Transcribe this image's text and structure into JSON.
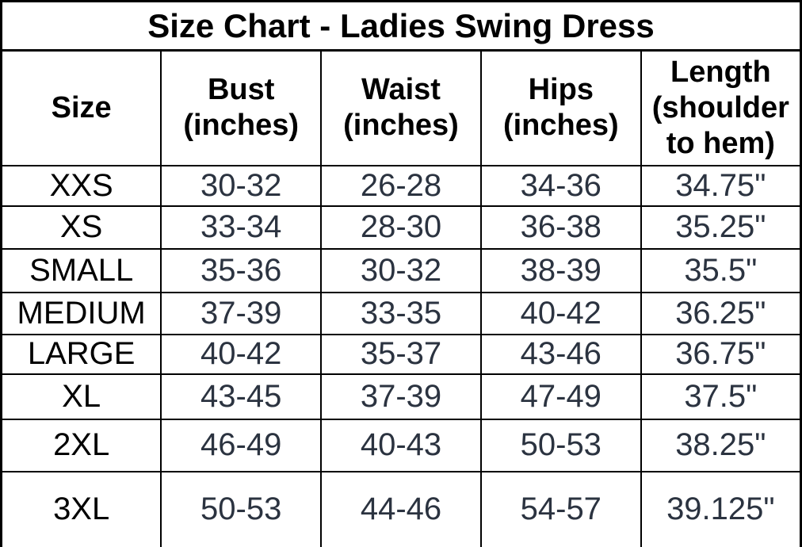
{
  "title": "Size Chart - Ladies Swing Dress",
  "header_display": {
    "size": "Size",
    "bust": "Bust\n(inches)",
    "waist": "Waist\n(inches)",
    "hips": "Hips\n(inches)",
    "length": "Length\n(shoulder\nto hem)"
  },
  "colors": {
    "background": "#ffffff",
    "border": "#000000",
    "title_text": "#000000",
    "header_text": "#000000",
    "size_label_text": "#000000",
    "value_text": "#2b3340"
  },
  "chart_data": {
    "type": "table",
    "title": "Size Chart - Ladies Swing Dress",
    "columns": [
      "Size",
      "Bust (inches)",
      "Waist (inches)",
      "Hips (inches)",
      "Length (shoulder to hem)"
    ],
    "rows": [
      [
        "XXS",
        "30-32",
        "26-28",
        "34-36",
        "34.75\""
      ],
      [
        "XS",
        "33-34",
        "28-30",
        "36-38",
        "35.25\""
      ],
      [
        "SMALL",
        "35-36",
        "30-32",
        "38-39",
        "35.5\""
      ],
      [
        "MEDIUM",
        "37-39",
        "33-35",
        "40-42",
        "36.25\""
      ],
      [
        "LARGE",
        "40-42",
        "35-37",
        "43-46",
        "36.75\""
      ],
      [
        "XL",
        "43-45",
        "37-39",
        "47-49",
        "37.5\""
      ],
      [
        "2XL",
        "46-49",
        "40-43",
        "50-53",
        "38.25\""
      ],
      [
        "3XL",
        "50-53",
        "44-46",
        "54-57",
        "39.125\""
      ]
    ]
  }
}
